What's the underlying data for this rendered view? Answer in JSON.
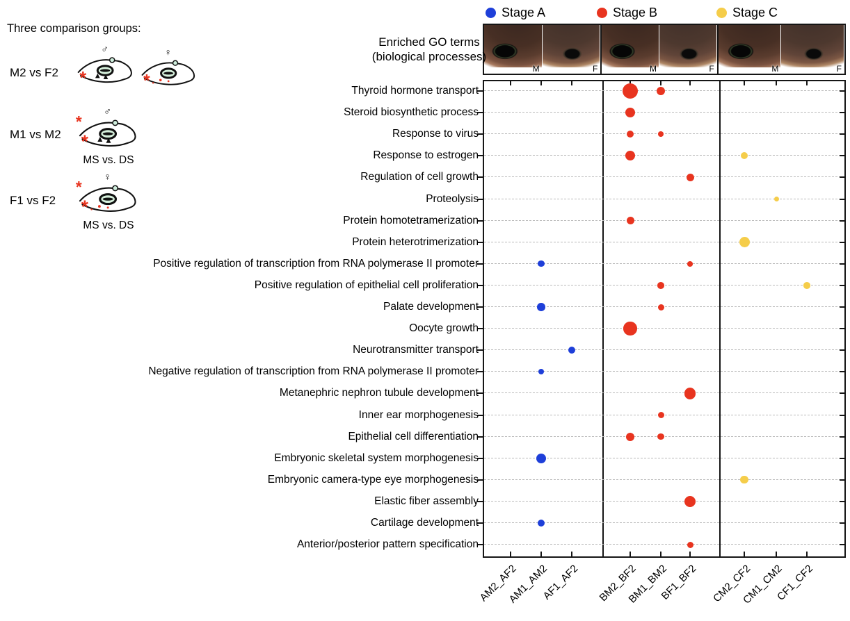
{
  "legend": {
    "items": [
      {
        "label": "Stage A",
        "color": "#1e3fd9"
      },
      {
        "label": "Stage B",
        "color": "#e8341f"
      },
      {
        "label": "Stage C",
        "color": "#f5cd4a"
      }
    ]
  },
  "left_panel": {
    "title": "Three comparison groups:",
    "male_symbol": "♂",
    "female_symbol": "♀",
    "asterisk": "*",
    "groups": [
      {
        "label": "M2 vs F2",
        "sublabel": "",
        "frogs": [
          {
            "sex": "male",
            "top_asterisk": false
          },
          {
            "sex": "female",
            "top_asterisk": false
          }
        ]
      },
      {
        "label": "M1 vs M2",
        "sublabel": "MS vs. DS",
        "frogs": [
          {
            "sex": "male",
            "top_asterisk": true
          }
        ]
      },
      {
        "label": "F1 vs F2",
        "sublabel": "MS vs. DS",
        "frogs": [
          {
            "sex": "female",
            "top_asterisk": true
          }
        ]
      }
    ]
  },
  "photo_strip": {
    "panels": [
      {
        "stage": "Stage A",
        "labels": [
          "M",
          "F"
        ]
      },
      {
        "stage": "Stage B",
        "labels": [
          "M",
          "F"
        ]
      },
      {
        "stage": "Stage C",
        "labels": [
          "M",
          "F"
        ]
      }
    ]
  },
  "chart_data": {
    "type": "bubble",
    "header": [
      "Enriched GO terms",
      "(biological processes)"
    ],
    "legend_position": "top",
    "grid": "dashed horizontal line per GO term",
    "facets": [
      "Stage A",
      "Stage B",
      "Stage C"
    ],
    "categories": [
      "AM2_AF2",
      "AM1_AM2",
      "AF1_AF2",
      "BM2_BF2",
      "BM1_BM2",
      "BF1_BF2",
      "CM2_CF2",
      "CM1_CM2",
      "CF1_CF2"
    ],
    "go_terms": [
      "Thyroid hormone transport",
      "Steroid biosynthetic process",
      "Response to virus",
      "Response to estrogen",
      "Regulation of cell growth",
      "Proteolysis",
      "Protein homotetramerization",
      "Protein heterotrimerization",
      "Positive regulation of transcription from RNA polymerase II promoter",
      "Positive regulation of epithelial cell proliferation",
      "Palate development",
      "Oocyte growth",
      "Neurotransmitter transport",
      "Negative regulation of transcription from RNA polymerase II promoter",
      "Metanephric nephron tubule development",
      "Inner ear morphogenesis",
      "Epithelial cell differentiation",
      "Embryonic skeletal system morphogenesis",
      "Embryonic camera-type eye morphogenesis",
      "Elastic fiber assembly",
      "Cartilage development",
      "Anterior/posterior pattern specification"
    ],
    "size_note": "bubble radius in screen px as depicted; no numeric size legend shown in figure",
    "points": [
      {
        "term": "Thyroid hormone transport",
        "comparison": "BM2_BF2",
        "stage": "B",
        "size": 11
      },
      {
        "term": "Thyroid hormone transport",
        "comparison": "BM1_BM2",
        "stage": "B",
        "size": 6
      },
      {
        "term": "Steroid biosynthetic process",
        "comparison": "BM2_BF2",
        "stage": "B",
        "size": 7.2
      },
      {
        "term": "Response to virus",
        "comparison": "BM2_BF2",
        "stage": "B",
        "size": 5
      },
      {
        "term": "Response to virus",
        "comparison": "BM1_BM2",
        "stage": "B",
        "size": 3.8
      },
      {
        "term": "Response to estrogen",
        "comparison": "BM2_BF2",
        "stage": "B",
        "size": 7
      },
      {
        "term": "Response to estrogen",
        "comparison": "CM2_CF2",
        "stage": "C",
        "size": 5
      },
      {
        "term": "Regulation of cell growth",
        "comparison": "BF1_BF2",
        "stage": "B",
        "size": 5.5
      },
      {
        "term": "Proteolysis",
        "comparison": "CM1_CM2",
        "stage": "C",
        "size": 3.5
      },
      {
        "term": "Protein homotetramerization",
        "comparison": "BM2_BF2",
        "stage": "B",
        "size": 5.5
      },
      {
        "term": "Protein heterotrimerization",
        "comparison": "CM2_CF2",
        "stage": "C",
        "size": 7.5
      },
      {
        "term": "Positive regulation of transcription from RNA polymerase II promoter",
        "comparison": "AM1_AM2",
        "stage": "A",
        "size": 4.7
      },
      {
        "term": "Positive regulation of transcription from RNA polymerase II promoter",
        "comparison": "BF1_BF2",
        "stage": "B",
        "size": 3.8
      },
      {
        "term": "Positive regulation of epithelial cell proliferation",
        "comparison": "BM1_BM2",
        "stage": "B",
        "size": 4.8
      },
      {
        "term": "Positive regulation of epithelial cell proliferation",
        "comparison": "CF1_CF2",
        "stage": "C",
        "size": 4.8
      },
      {
        "term": "Palate development",
        "comparison": "AM1_AM2",
        "stage": "A",
        "size": 5.8
      },
      {
        "term": "Palate development",
        "comparison": "BM1_BM2",
        "stage": "B",
        "size": 4.5
      },
      {
        "term": "Oocyte growth",
        "comparison": "BM2_BF2",
        "stage": "B",
        "size": 9.7
      },
      {
        "term": "Neurotransmitter transport",
        "comparison": "AF1_AF2",
        "stage": "A",
        "size": 5
      },
      {
        "term": "Negative regulation of transcription from RNA polymerase II promoter",
        "comparison": "AM1_AM2",
        "stage": "A",
        "size": 4.2
      },
      {
        "term": "Metanephric nephron tubule development",
        "comparison": "BF1_BF2",
        "stage": "B",
        "size": 8.2
      },
      {
        "term": "Inner ear morphogenesis",
        "comparison": "BM1_BM2",
        "stage": "B",
        "size": 4.5
      },
      {
        "term": "Epithelial cell differentiation",
        "comparison": "BM2_BF2",
        "stage": "B",
        "size": 6
      },
      {
        "term": "Epithelial cell differentiation",
        "comparison": "BM1_BM2",
        "stage": "B",
        "size": 4.7
      },
      {
        "term": "Embryonic skeletal system morphogenesis",
        "comparison": "AM1_AM2",
        "stage": "A",
        "size": 7
      },
      {
        "term": "Embryonic camera-type eye morphogenesis",
        "comparison": "CM2_CF2",
        "stage": "C",
        "size": 5.6
      },
      {
        "term": "Elastic fiber assembly",
        "comparison": "BF1_BF2",
        "stage": "B",
        "size": 8.2
      },
      {
        "term": "Cartilage development",
        "comparison": "AM1_AM2",
        "stage": "A",
        "size": 5.2
      },
      {
        "term": "Anterior/posterior pattern specification",
        "comparison": "BF1_BF2",
        "stage": "B",
        "size": 4.5
      }
    ]
  }
}
